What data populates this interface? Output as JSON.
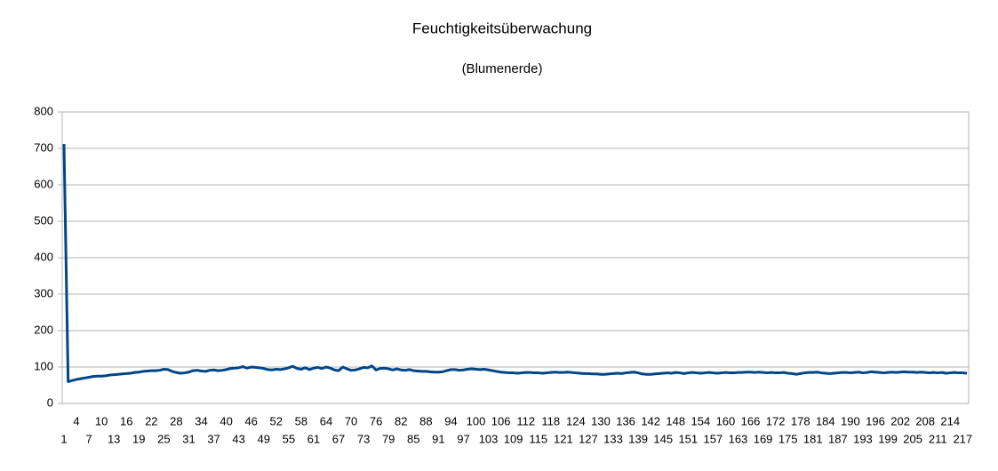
{
  "chart_data": {
    "type": "line",
    "title": "Feuchtigkeitsüberwachung",
    "subtitle": "(Blumenerde)",
    "color": "#004586",
    "grid": true,
    "ylim": [
      0,
      800
    ],
    "yticks": [
      0,
      100,
      200,
      300,
      400,
      500,
      600,
      700,
      800
    ],
    "categories": [
      1,
      null,
      null,
      4,
      null,
      null,
      7,
      null,
      null,
      10,
      null,
      null,
      13,
      null,
      null,
      16,
      null,
      null,
      19,
      null,
      null,
      22,
      null,
      null,
      25,
      null,
      null,
      28,
      null,
      null,
      31,
      null,
      null,
      34,
      null,
      null,
      37,
      null,
      null,
      40,
      null,
      null,
      43,
      null,
      null,
      46,
      null,
      null,
      49,
      null,
      null,
      52,
      null,
      null,
      55,
      null,
      null,
      58,
      null,
      null,
      61,
      null,
      null,
      64,
      null,
      null,
      67,
      null,
      null,
      70,
      null,
      null,
      73,
      null,
      null,
      76,
      null,
      null,
      79,
      null,
      null,
      82,
      null,
      null,
      85,
      null,
      null,
      88,
      null,
      null,
      91,
      null,
      null,
      94,
      null,
      null,
      97,
      null,
      null,
      100,
      null,
      null,
      103,
      null,
      null,
      106,
      null,
      null,
      109,
      null,
      null,
      112,
      null,
      null,
      115,
      null,
      null,
      118,
      null,
      null,
      121,
      null,
      null,
      124,
      null,
      null,
      127,
      null,
      null,
      130,
      null,
      null,
      133,
      null,
      null,
      136,
      null,
      null,
      139,
      null,
      null,
      142,
      null,
      null,
      145,
      null,
      null,
      148,
      null,
      null,
      151,
      null,
      null,
      154,
      null,
      null,
      157,
      null,
      null,
      160,
      null,
      null,
      163,
      null,
      null,
      166,
      null,
      null,
      169,
      null,
      null,
      172,
      null,
      null,
      175,
      null,
      null,
      178,
      null,
      null,
      181,
      null,
      null,
      184,
      null,
      null,
      187,
      null,
      null,
      190,
      null,
      null,
      193,
      null,
      null,
      196,
      null,
      null,
      199,
      null,
      null,
      202,
      null,
      null,
      205,
      null,
      null,
      208,
      null,
      null,
      211,
      null,
      null,
      214,
      null,
      null,
      217,
      null
    ],
    "values": [
      712,
      60,
      63,
      66,
      68,
      70,
      72,
      74,
      75,
      75,
      76,
      78,
      79,
      80,
      81,
      82,
      83,
      85,
      86,
      88,
      89,
      90,
      90,
      91,
      94,
      93,
      88,
      85,
      83,
      84,
      86,
      90,
      91,
      89,
      88,
      91,
      92,
      90,
      91,
      93,
      96,
      97,
      98,
      101,
      97,
      100,
      99,
      98,
      96,
      93,
      92,
      94,
      93,
      95,
      98,
      102,
      96,
      94,
      98,
      93,
      97,
      99,
      96,
      100,
      97,
      92,
      90,
      100,
      95,
      91,
      92,
      95,
      99,
      98,
      103,
      92,
      96,
      97,
      95,
      92,
      95,
      92,
      91,
      93,
      90,
      89,
      88,
      88,
      87,
      86,
      86,
      87,
      90,
      93,
      93,
      91,
      92,
      94,
      95,
      94,
      93,
      94,
      92,
      90,
      88,
      86,
      85,
      84,
      84,
      83,
      84,
      85,
      85,
      84,
      84,
      83,
      84,
      85,
      86,
      85,
      85,
      86,
      85,
      84,
      83,
      82,
      82,
      81,
      81,
      80,
      80,
      81,
      82,
      83,
      82,
      84,
      85,
      86,
      84,
      81,
      80,
      80,
      81,
      82,
      83,
      84,
      83,
      85,
      84,
      82,
      84,
      85,
      84,
      83,
      84,
      85,
      84,
      83,
      84,
      85,
      84,
      84,
      85,
      85,
      86,
      86,
      85,
      86,
      85,
      84,
      85,
      84,
      84,
      85,
      83,
      82,
      80,
      82,
      84,
      85,
      85,
      86,
      84,
      83,
      82,
      83,
      84,
      85,
      85,
      84,
      85,
      86,
      84,
      85,
      87,
      86,
      85,
      84,
      85,
      86,
      85,
      86,
      87,
      86,
      86,
      85,
      86,
      85,
      84,
      85,
      84,
      85,
      83,
      84,
      85,
      84,
      84,
      83
    ]
  }
}
